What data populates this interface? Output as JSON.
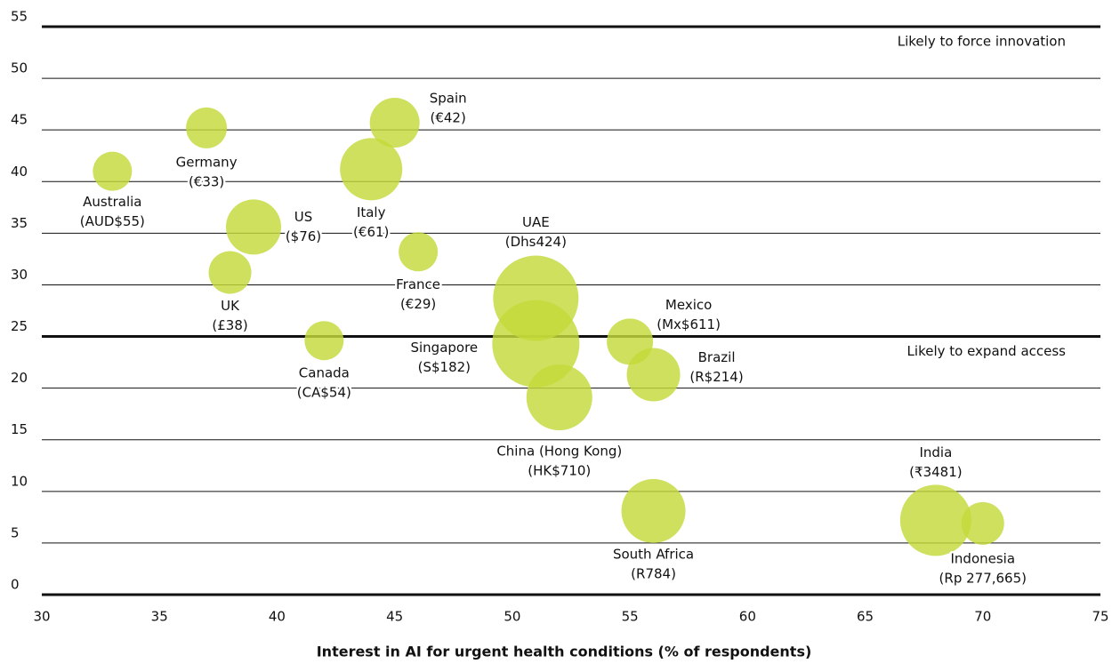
{
  "chart_data": {
    "type": "bubble",
    "x_label": "Interest in AI for urgent health conditions (% of respondents)",
    "xlim": [
      30,
      75
    ],
    "xticks": [
      30,
      35,
      40,
      45,
      50,
      55,
      60,
      65,
      70,
      75
    ],
    "ylim": [
      0,
      55
    ],
    "yticks": [
      0,
      5,
      10,
      15,
      20,
      25,
      30,
      35,
      40,
      45,
      50,
      55
    ],
    "grid": true,
    "color": "#c3d939",
    "annotations": [
      {
        "text": "Likely to force innovation",
        "y": 55
      },
      {
        "text": "Likely to expand access",
        "y": 25
      }
    ],
    "labels": [
      [
        "Australia",
        "(AUD$55)"
      ],
      [
        "Germany",
        "(€33)"
      ],
      [
        "Spain",
        "(€42)"
      ],
      [
        "Italy",
        "(€61)"
      ],
      [
        "US",
        "($76)"
      ],
      [
        "UK",
        "(£38)"
      ],
      [
        "France",
        "(€29)"
      ],
      [
        "Canada",
        "(CA$54)"
      ],
      [
        "UAE",
        "(Dhs424)"
      ],
      [
        "Singapore",
        "(S$182)"
      ],
      [
        "China (Hong Kong)",
        "(HK$710)"
      ],
      [
        "Mexico",
        "(Mx$611)"
      ],
      [
        "Brazil",
        "(R$214)"
      ],
      [
        "South Africa",
        "(R784)"
      ],
      [
        "India",
        "(₹3481)"
      ],
      [
        "Indonesia",
        "(Rp 277,665)"
      ]
    ],
    "x": [
      33,
      37,
      45,
      44,
      39,
      38,
      46,
      42,
      51,
      51,
      52,
      55,
      56,
      56,
      68,
      70
    ],
    "values": [
      41,
      45.2,
      45.7,
      41.2,
      35.6,
      31.2,
      33.2,
      24.6,
      28.7,
      24.3,
      19.1,
      24.5,
      21.3,
      8.1,
      7.2,
      6.9
    ],
    "sizes": [
      22,
      23,
      28,
      35,
      31,
      24,
      22,
      22,
      48,
      49,
      37,
      26,
      30,
      36,
      40,
      24
    ]
  }
}
